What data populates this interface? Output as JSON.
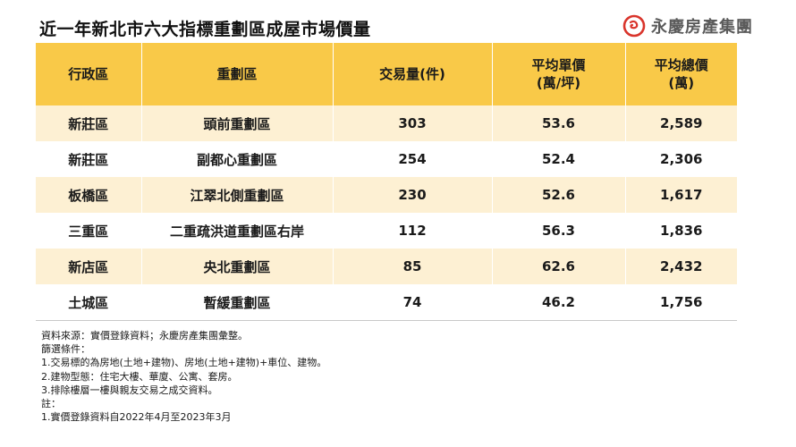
{
  "header": {
    "title": "近一年新北市六大指標重劃區成屋市場價量",
    "brand": "永慶房產集團"
  },
  "table": {
    "columns": [
      "行政區",
      "重劃區",
      "交易量(件)",
      "平均單價\n(萬/坪)",
      "平均總價\n(萬)"
    ],
    "columns_lines": [
      [
        "行政區"
      ],
      [
        "重劃區"
      ],
      [
        "交易量(件)"
      ],
      [
        "平均單價",
        "(萬/坪)"
      ],
      [
        "平均總價",
        "(萬)"
      ]
    ],
    "rows": [
      [
        "新莊區",
        "頭前重劃區",
        "303",
        "53.6",
        "2,589"
      ],
      [
        "新莊區",
        "副都心重劃區",
        "254",
        "52.4",
        "2,306"
      ],
      [
        "板橋區",
        "江翠北側重劃區",
        "230",
        "52.6",
        "1,617"
      ],
      [
        "三重區",
        "二重疏洪道重劃區右岸",
        "112",
        "56.3",
        "1,836"
      ],
      [
        "新店區",
        "央北重劃區",
        "85",
        "62.6",
        "2,432"
      ],
      [
        "土城區",
        "暫緩重劃區",
        "74",
        "46.2",
        "1,756"
      ]
    ]
  },
  "notes": [
    "資料來源：實價登錄資料；永慶房產集團彙整。",
    "篩選條件：",
    "1.交易標的為房地(土地+建物)、房地(土地+建物)+車位、建物。",
    "2.建物型態：住宅大樓、華廈、公寓、套房。",
    "3.排除樓層一樓與親友交易之成交資料。",
    "註：",
    "1.實價登錄資料自2022年4月至2023年3月"
  ],
  "colors": {
    "header_bg": "#f9c948",
    "row_odd_bg": "#fdf0d3",
    "row_even_bg": "#ffffff",
    "logo_red": "#d9342b"
  },
  "icons": {
    "logo": "brand-logo-icon"
  }
}
